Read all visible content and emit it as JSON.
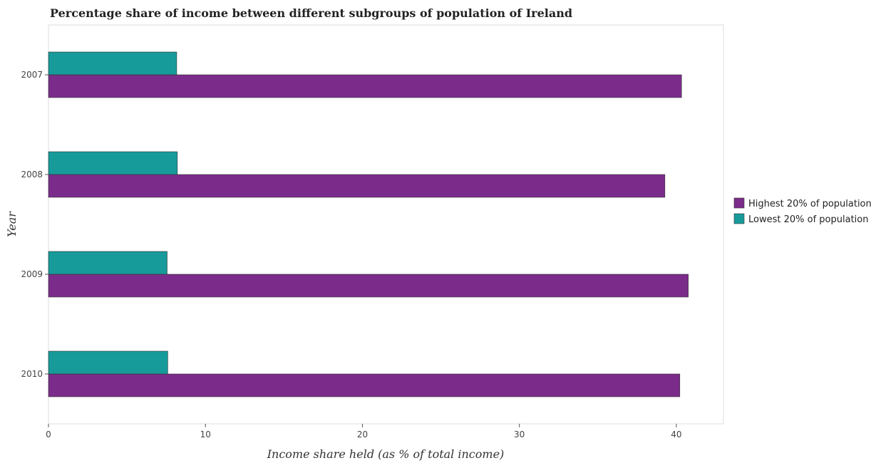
{
  "chart_data": {
    "type": "bar",
    "orientation": "horizontal",
    "title": "Percentage share of income between different subgroups of population of Ireland",
    "xlabel": "Income share held (as % of total income)",
    "ylabel": "Year",
    "xlim": [
      0,
      43
    ],
    "xticks": [
      0,
      10,
      20,
      30,
      40
    ],
    "categories": [
      "2007",
      "2008",
      "2009",
      "2010"
    ],
    "series": [
      {
        "name": "Highest 20% of population",
        "color": "#7b2c8a",
        "values": [
          40.33,
          39.27,
          40.76,
          40.22
        ]
      },
      {
        "name": "Lowest 20% of population",
        "color": "#179a9a",
        "values": [
          8.17,
          8.21,
          7.56,
          7.6
        ]
      }
    ],
    "legend": "right",
    "grid": false
  }
}
